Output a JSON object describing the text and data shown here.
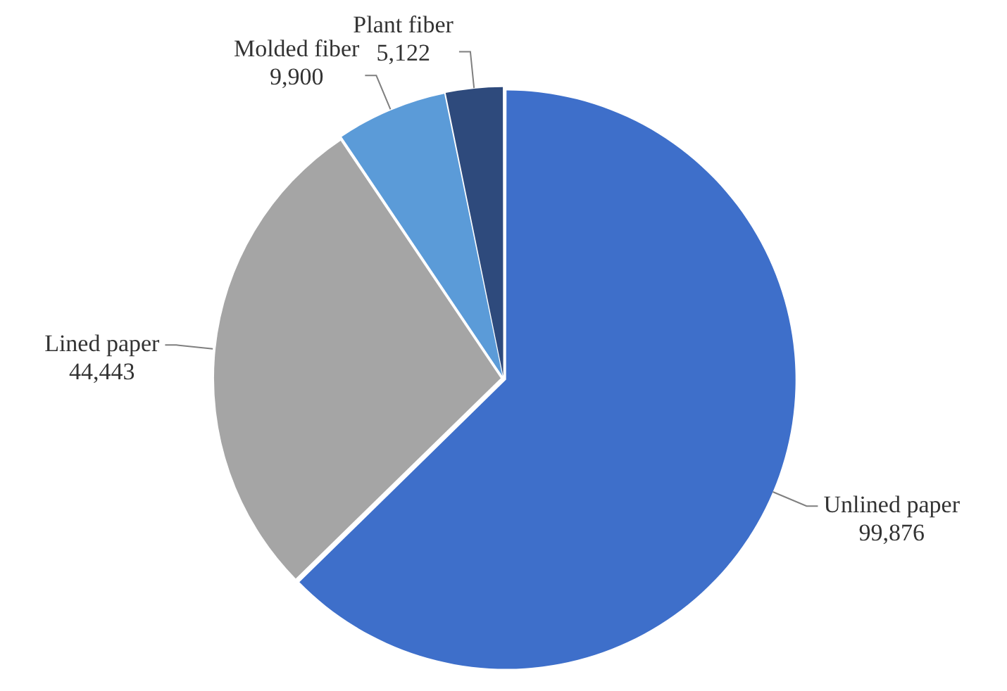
{
  "chart_data": {
    "type": "pie",
    "categories": [
      "Unlined paper",
      "Lined paper",
      "Molded fiber",
      "Plant fiber"
    ],
    "values": [
      99876,
      44443,
      9900,
      5122
    ],
    "colors": [
      "#3e6fca",
      "#a5a5a5",
      "#5b9bd8",
      "#2e4a7c"
    ],
    "value_labels": [
      "99,876",
      "44,443",
      "9,900",
      "5,122"
    ],
    "legend": false
  }
}
